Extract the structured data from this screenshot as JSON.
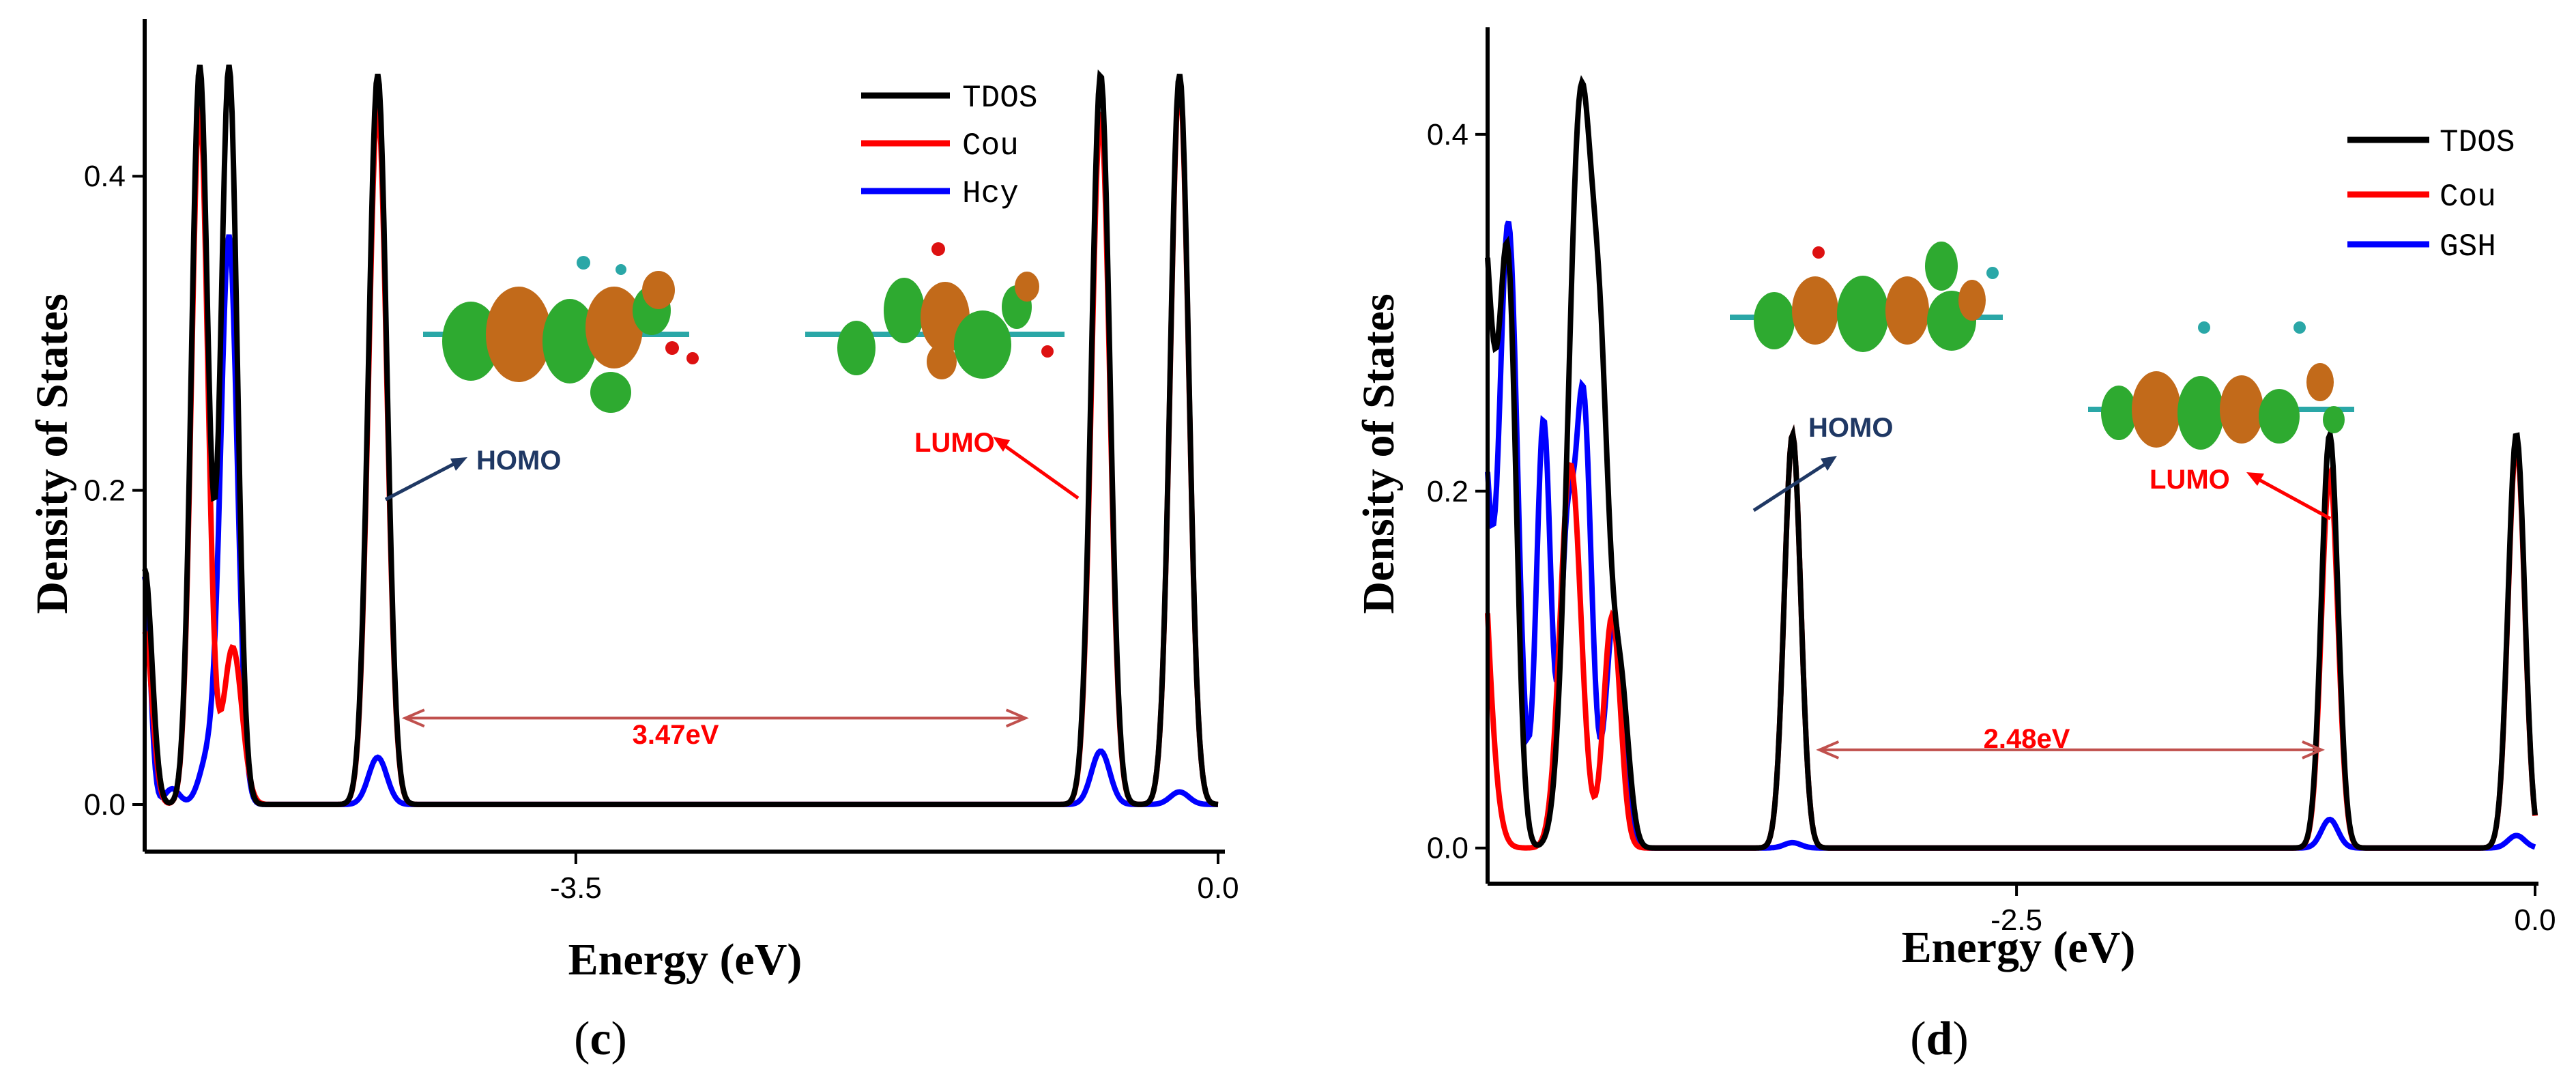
{
  "chart_data": [
    {
      "panel_label": "c",
      "type": "line",
      "xlabel": "Energy (eV)",
      "ylabel": "Density of States",
      "xlim": [
        -5.85,
        0.0
      ],
      "ylim": [
        -0.03,
        0.5
      ],
      "xticks": [
        -3.5,
        0.0
      ],
      "xtick_labels": [
        "-3.5",
        "0.0"
      ],
      "yticks": [
        0.0,
        0.2,
        0.4
      ],
      "ytick_labels": [
        "0.0",
        "0.2",
        "0.4"
      ],
      "legend": {
        "position": "top-right",
        "entries": [
          "TDOS",
          "Cou",
          "Hcy"
        ]
      },
      "series": [
        {
          "name": "TDOS",
          "color": "#000000",
          "peaks": [
            {
              "x": -5.85,
              "h": 0.15,
              "w": 0.04
            },
            {
              "x": -5.55,
              "h": 0.47,
              "w": 0.045
            },
            {
              "x": -5.39,
              "h": 0.47,
              "w": 0.045
            },
            {
              "x": -4.58,
              "h": 0.465,
              "w": 0.05
            },
            {
              "x": -0.64,
              "h": 0.465,
              "w": 0.05
            },
            {
              "x": -0.21,
              "h": 0.465,
              "w": 0.05
            }
          ]
        },
        {
          "name": "Cou",
          "color": "#ff0000",
          "peaks": [
            {
              "x": -5.85,
              "h": 0.11,
              "w": 0.04
            },
            {
              "x": -5.55,
              "h": 0.445,
              "w": 0.045
            },
            {
              "x": -5.37,
              "h": 0.1,
              "w": 0.05
            },
            {
              "x": -4.58,
              "h": 0.445,
              "w": 0.05
            },
            {
              "x": -0.64,
              "h": 0.44,
              "w": 0.05
            },
            {
              "x": -0.21,
              "h": 0.46,
              "w": 0.05
            }
          ]
        },
        {
          "name": "Hcy",
          "color": "#0000ff",
          "peaks": [
            {
              "x": -5.85,
              "h": 0.145,
              "w": 0.03
            },
            {
              "x": -5.7,
              "h": 0.01,
              "w": 0.04
            },
            {
              "x": -5.39,
              "h": 0.36,
              "w": 0.045
            },
            {
              "x": -5.5,
              "h": 0.03,
              "w": 0.05
            },
            {
              "x": -4.58,
              "h": 0.03,
              "w": 0.05
            },
            {
              "x": -0.64,
              "h": 0.034,
              "w": 0.05
            },
            {
              "x": -0.21,
              "h": 0.008,
              "w": 0.05
            }
          ]
        }
      ],
      "annotations": {
        "homo": {
          "text": "HOMO",
          "color": "#1f3864"
        },
        "lumo": {
          "text": "LUMO",
          "color": "#ff0000"
        },
        "gap": {
          "text": "3.47eV",
          "from": -4.43,
          "to": -1.05,
          "y": 0.055,
          "color": "#c0504d"
        }
      }
    },
    {
      "panel_label": "d",
      "type": "line",
      "xlabel": "Energy (eV)",
      "ylabel": "Density of States",
      "xlim": [
        -5.05,
        0.0
      ],
      "ylim": [
        -0.02,
        0.46
      ],
      "xticks": [
        -2.5,
        0.0
      ],
      "xtick_labels": [
        "-2.5",
        "0.0"
      ],
      "yticks": [
        0.0,
        0.2,
        0.4
      ],
      "ytick_labels": [
        "0.0",
        "0.2",
        "0.4"
      ],
      "legend": {
        "position": "top-right",
        "entries": [
          "TDOS",
          "Cou",
          "GSH"
        ]
      },
      "series": [
        {
          "name": "TDOS",
          "color": "#000000",
          "peaks": [
            {
              "x": -5.08,
              "h": 0.36,
              "w": 0.06
            },
            {
              "x": -4.95,
              "h": 0.3,
              "w": 0.04
            },
            {
              "x": -4.6,
              "h": 0.42,
              "w": 0.06
            },
            {
              "x": -4.5,
              "h": 0.18,
              "w": 0.04
            },
            {
              "x": -4.41,
              "h": 0.09,
              "w": 0.04
            },
            {
              "x": -3.58,
              "h": 0.232,
              "w": 0.04
            },
            {
              "x": -0.99,
              "h": 0.232,
              "w": 0.04
            },
            {
              "x": -0.09,
              "h": 0.232,
              "w": 0.04
            }
          ]
        },
        {
          "name": "Cou",
          "color": "#ff0000",
          "peaks": [
            {
              "x": -5.12,
              "h": 0.26,
              "w": 0.06
            },
            {
              "x": -4.65,
              "h": 0.215,
              "w": 0.05
            },
            {
              "x": -4.45,
              "h": 0.13,
              "w": 0.04
            },
            {
              "x": -3.58,
              "h": 0.232,
              "w": 0.04
            },
            {
              "x": -0.99,
              "h": 0.21,
              "w": 0.04
            },
            {
              "x": -0.09,
              "h": 0.227,
              "w": 0.04
            }
          ]
        },
        {
          "name": "GSH",
          "color": "#0000ff",
          "peaks": [
            {
              "x": -5.08,
              "h": 0.24,
              "w": 0.04
            },
            {
              "x": -4.95,
              "h": 0.35,
              "w": 0.045
            },
            {
              "x": -4.78,
              "h": 0.24,
              "w": 0.035
            },
            {
              "x": -4.59,
              "h": 0.255,
              "w": 0.04
            },
            {
              "x": -4.67,
              "h": 0.15,
              "w": 0.03
            },
            {
              "x": -4.44,
              "h": 0.13,
              "w": 0.04
            },
            {
              "x": -3.58,
              "h": 0.003,
              "w": 0.04
            },
            {
              "x": -0.99,
              "h": 0.016,
              "w": 0.04
            },
            {
              "x": -0.09,
              "h": 0.007,
              "w": 0.04
            }
          ]
        }
      ],
      "annotations": {
        "homo": {
          "text": "HOMO",
          "color": "#1f3864"
        },
        "lumo": {
          "text": "LUMO",
          "color": "#ff0000"
        },
        "gap": {
          "text": "2.48eV",
          "from": -3.45,
          "to": -1.03,
          "y": 0.055,
          "color": "#c0504d"
        }
      }
    }
  ]
}
